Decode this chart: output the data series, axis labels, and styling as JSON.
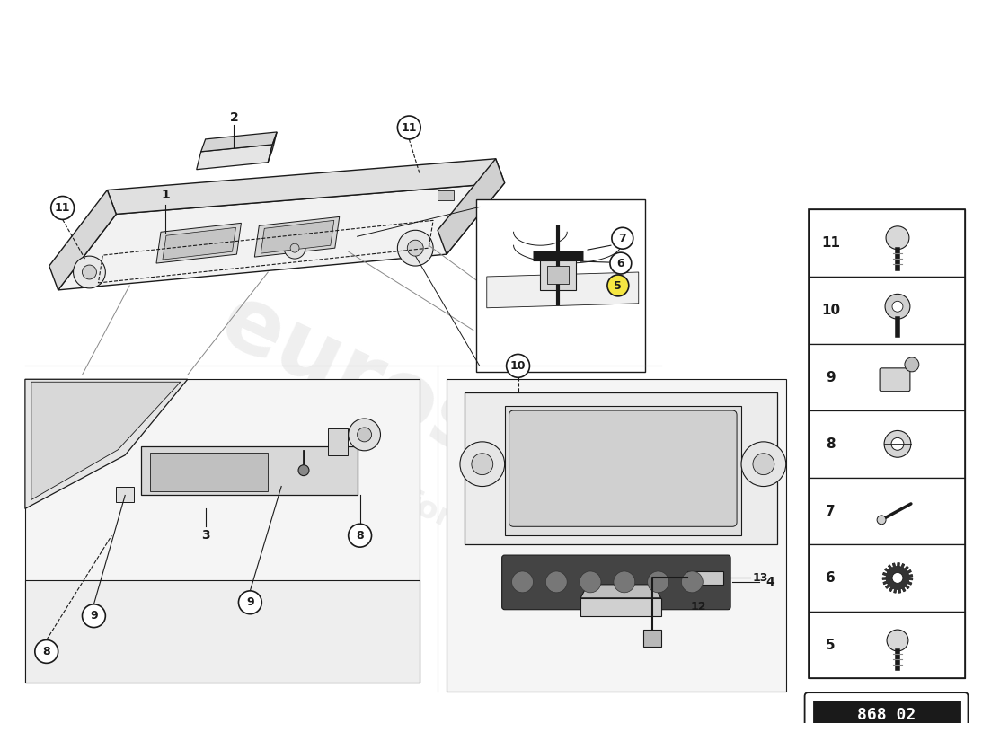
{
  "bg_color": "#ffffff",
  "line_color": "#1a1a1a",
  "part_number": "868 02",
  "watermark1": "eurospares",
  "watermark2": "a passion for parts since 1985",
  "parts_table": [
    {
      "num": "11",
      "row": 0
    },
    {
      "num": "10",
      "row": 1
    },
    {
      "num": "9",
      "row": 2
    },
    {
      "num": "8",
      "row": 3
    },
    {
      "num": "7",
      "row": 4
    },
    {
      "num": "6",
      "row": 5
    },
    {
      "num": "5",
      "row": 6
    }
  ],
  "fig_w": 11.0,
  "fig_h": 8.0,
  "dpi": 100
}
